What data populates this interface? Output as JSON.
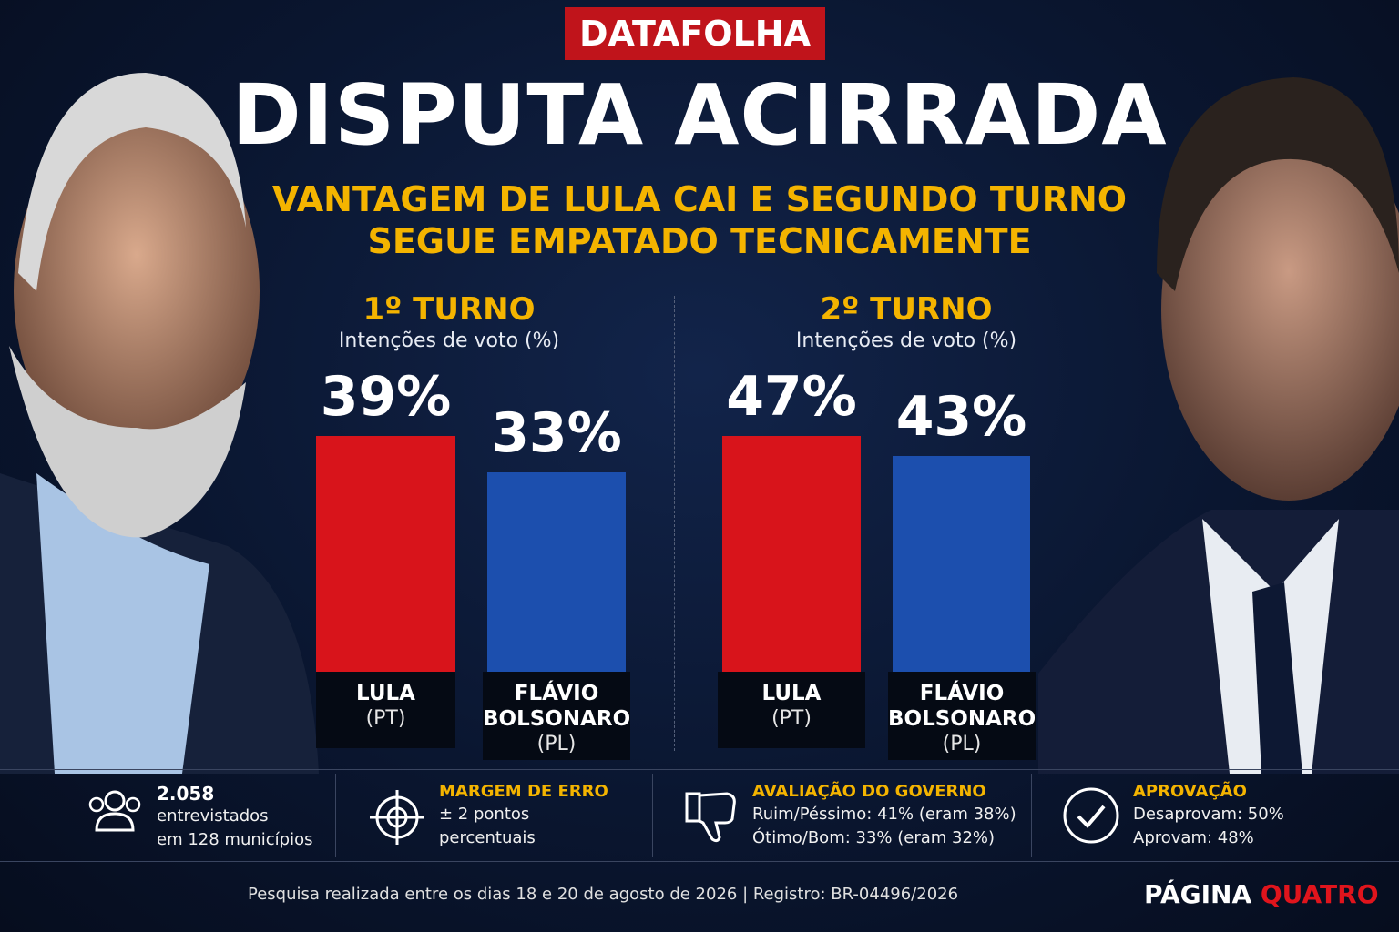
{
  "header": {
    "kicker": "DATAFOLHA",
    "title": "DISPUTA ACIRRADA",
    "subtitle": [
      "VANTAGEM DE LULA CAI E SEGUNDO TURNO",
      "SEGUE EMPATADO TECNICAMENTE"
    ]
  },
  "chart_data": [
    {
      "type": "bar",
      "title": "1º TURNO",
      "subtitle": "Intenções de voto (%)",
      "categories": [
        "LULA",
        "FLÁVIO\nBOLSONARO"
      ],
      "parties": [
        "(PT)",
        "(PL)"
      ],
      "values": [
        39,
        33
      ],
      "value_labels": [
        "39%",
        "33%"
      ],
      "colors": [
        "#d8141b",
        "#1c4fae"
      ]
    },
    {
      "type": "bar",
      "title": "2º TURNO",
      "subtitle": "Intenções de voto (%)",
      "categories": [
        "LULA",
        "FLÁVIO\nBOLSONARO"
      ],
      "parties": [
        "(PT)",
        "(PL)"
      ],
      "values": [
        47,
        43
      ],
      "value_labels": [
        "47%",
        "43%"
      ],
      "colors": [
        "#d8141b",
        "#1c4fae"
      ]
    }
  ],
  "stats": [
    {
      "heading": "2.058",
      "lines": [
        "entrevistados",
        "em 128 municípios"
      ]
    },
    {
      "heading": "MARGEM DE ERRO",
      "lines": [
        "± 2 pontos",
        "percentuais"
      ]
    },
    {
      "heading": "AVALIAÇÃO DO GOVERNO",
      "lines": [
        "Ruim/Péssimo: 41% (eram 38%)",
        "Ótimo/Bom: 33% (eram 32%)"
      ]
    },
    {
      "heading": "APROVAÇÃO",
      "lines": [
        "Desaprovam: 50%",
        "Aprovam: 48%"
      ]
    }
  ],
  "footer": {
    "note": "Pesquisa realizada entre os dias 18 e 20 de agosto de 2026  |  Registro: BR-04496/2026",
    "brand": [
      "PÁGINA",
      "QUATRO"
    ]
  }
}
